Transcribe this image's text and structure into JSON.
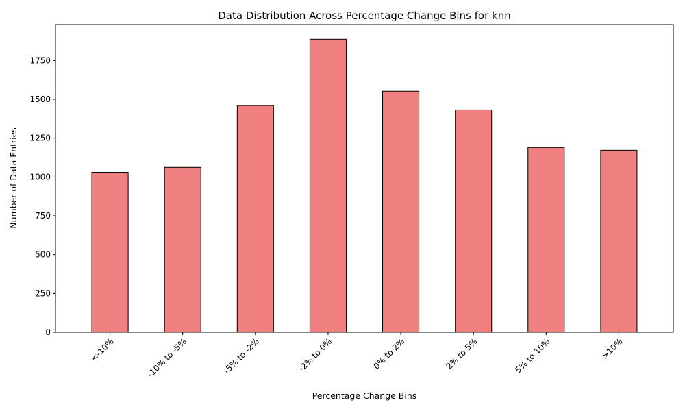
{
  "chart_data": {
    "type": "bar",
    "title": "Data Distribution Across Percentage Change Bins for knn",
    "xlabel": "Percentage Change Bins",
    "ylabel": "Number of Data Entries",
    "categories": [
      "<-10%",
      "-10% to -5%",
      "-5% to -2%",
      "-2% to 0%",
      "0% to 2%",
      "2% to 5%",
      "5% to 10%",
      ">10%"
    ],
    "values": [
      1030,
      1062,
      1460,
      1887,
      1552,
      1432,
      1190,
      1172
    ],
    "yticks": [
      0,
      250,
      500,
      750,
      1000,
      1250,
      1500,
      1750
    ],
    "ylim": [
      0,
      1981
    ],
    "grid": false,
    "legend": "none",
    "bar_color": "#f08080",
    "edge_color": "#000000"
  }
}
